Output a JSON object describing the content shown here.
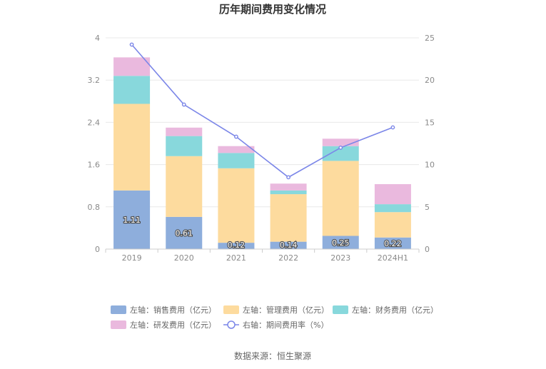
{
  "chart_data": {
    "type": "bar",
    "title": "历年期间费用变化情况",
    "categories": [
      "2019",
      "2020",
      "2021",
      "2022",
      "2023",
      "2024H1"
    ],
    "stacked": true,
    "left_axis": {
      "ticks": [
        "0",
        "0.8",
        "1.6",
        "2.4",
        "3.2",
        "4"
      ],
      "ylim": [
        0,
        4
      ]
    },
    "right_axis": {
      "ticks": [
        "0",
        "5",
        "10",
        "15",
        "20",
        "25"
      ],
      "ylim": [
        0,
        25
      ]
    },
    "series": [
      {
        "name": "左轴：销售费用（亿元）",
        "type": "bar",
        "axis": "left",
        "color": "#8eaedc",
        "values": [
          1.11,
          0.61,
          0.12,
          0.14,
          0.25,
          0.22
        ],
        "labels": [
          "1.11",
          "0.61",
          "0.12",
          "0.14",
          "0.25",
          "0.22"
        ]
      },
      {
        "name": "左轴：管理费用（亿元）",
        "type": "bar",
        "axis": "left",
        "color": "#fddb9e",
        "values": [
          1.64,
          1.15,
          1.41,
          0.9,
          1.42,
          0.48
        ]
      },
      {
        "name": "左轴：财务费用（亿元）",
        "type": "bar",
        "axis": "left",
        "color": "#88d8dc",
        "values": [
          0.53,
          0.38,
          0.29,
          0.07,
          0.28,
          0.15
        ]
      },
      {
        "name": "左轴：研发费用（亿元）",
        "type": "bar",
        "axis": "left",
        "color": "#eab9de",
        "values": [
          0.35,
          0.16,
          0.13,
          0.13,
          0.14,
          0.38
        ]
      },
      {
        "name": "右轴：期间费用率（%）",
        "type": "line",
        "axis": "right",
        "color": "#7b86e8",
        "values": [
          24.2,
          17.1,
          13.3,
          8.5,
          12.0,
          14.4
        ]
      }
    ],
    "grid": true,
    "legend_position": "bottom"
  },
  "source": "数据来源：恒生聚源",
  "colors": {
    "axis": "#cccccc",
    "grid": "#e8e8e8"
  }
}
